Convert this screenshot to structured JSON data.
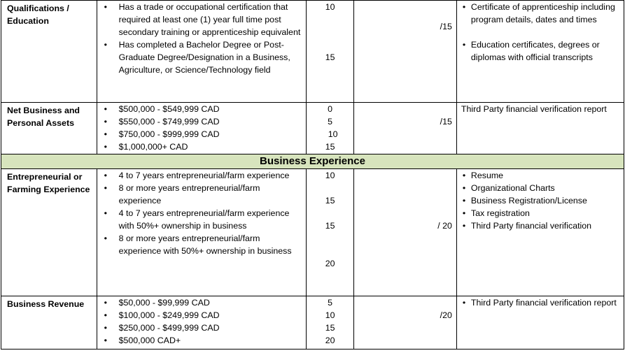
{
  "rows": {
    "qualifications": {
      "criteria": "Qualifications / Education",
      "items": [
        "Has a trade or occupational certification that required at least one (1) year full time post secondary training or apprenticeship equivalent",
        "Has completed a Bachelor Degree or Post-Graduate Degree/Designation in a Business, Agriculture, or Science/Technology field"
      ],
      "points": [
        "10",
        "15"
      ],
      "total": "/15",
      "docs": [
        "Certificate of apprenticeship including program details, dates and times",
        "Education certificates, degrees or diplomas with official transcripts"
      ]
    },
    "net_assets": {
      "criteria": "Net Business and Personal Assets",
      "items": [
        "$500,000 - $549,999 CAD",
        "$550,000 - $749,999 CAD",
        "$750,000 - $999,999 CAD",
        "$1,000,000+ CAD"
      ],
      "points": [
        "0",
        "5",
        "10",
        "15"
      ],
      "total": "/15",
      "docs_text": "Third Party financial verification report"
    },
    "section": {
      "title": "Business Experience"
    },
    "experience": {
      "criteria": "Entrepreneurial or Farming Experience",
      "items": [
        "4 to 7 years entrepreneurial/farm experience",
        "8 or more years entrepreneurial/farm experience",
        "4 to 7 years entrepreneurial/farm experience with 50%+ ownership in business",
        "8 or more years entrepreneurial/farm experience with 50%+ ownership in business"
      ],
      "points": [
        "10",
        "15",
        "15",
        "20"
      ],
      "total": "/ 20",
      "docs": [
        "Resume",
        "Organizational Charts",
        "Business Registration/License",
        "Tax registration",
        "Third Party financial verification"
      ]
    },
    "revenue": {
      "criteria": "Business Revenue",
      "items": [
        "$50,000 - $99,999 CAD",
        "$100,000 - $249,999 CAD",
        "$250,000 - $499,999 CAD",
        "$500,000 CAD+"
      ],
      "points": [
        "5",
        "10",
        "15",
        "20"
      ],
      "total": "/20",
      "docs": [
        "Third Party financial verification report"
      ]
    }
  }
}
